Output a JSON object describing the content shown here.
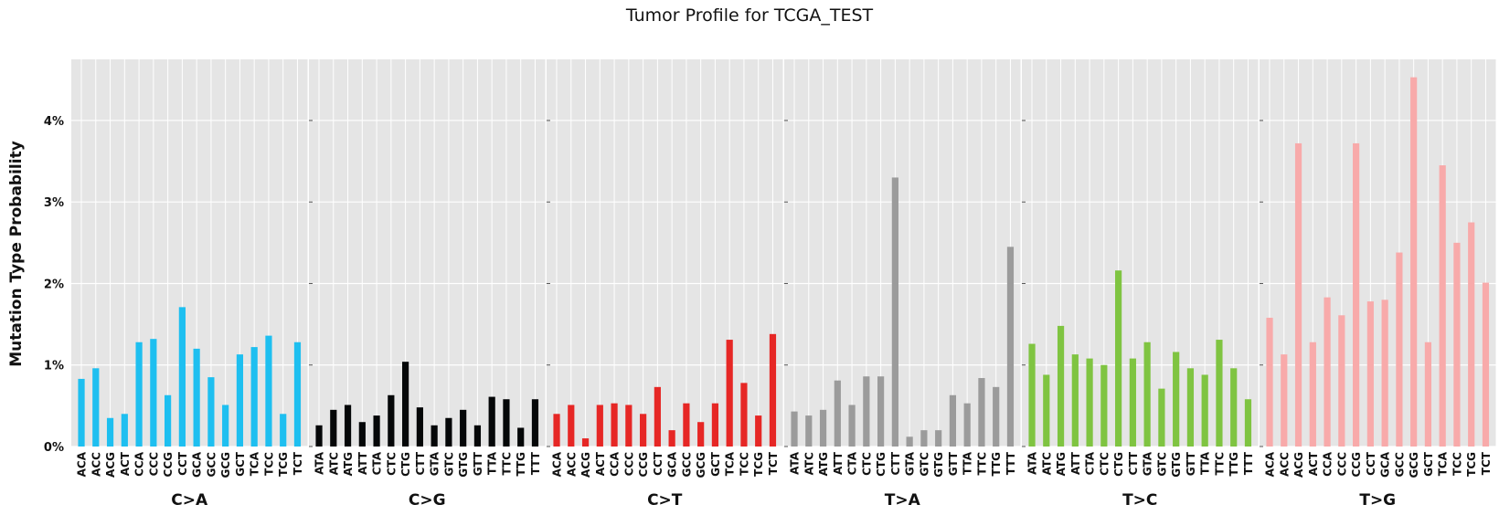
{
  "chart_data": {
    "type": "bar",
    "title": "Tumor Profile for TCGA_TEST",
    "ylabel": "Mutation Type Probability",
    "xlabel": "",
    "ylim": [
      0,
      4.75
    ],
    "yticks": [
      "0%",
      "1%",
      "2%",
      "3%",
      "4%"
    ],
    "ytick_values": [
      0,
      1,
      2,
      3,
      4
    ],
    "grid": true,
    "panels": [
      {
        "name": "C>A",
        "color": "#1ebff0",
        "categories": [
          "ACA",
          "ACC",
          "ACG",
          "ACT",
          "CCA",
          "CCC",
          "CCG",
          "CCT",
          "GCA",
          "GCC",
          "GCG",
          "GCT",
          "TCA",
          "TCC",
          "TCG",
          "TCT"
        ],
        "values": [
          0.83,
          0.96,
          0.35,
          0.4,
          1.28,
          1.32,
          0.63,
          1.71,
          1.2,
          0.85,
          0.51,
          1.13,
          1.22,
          1.36,
          0.4,
          1.28
        ]
      },
      {
        "name": "C>G",
        "color": "#050708",
        "categories": [
          "ATA",
          "ATC",
          "ATG",
          "ATT",
          "CTA",
          "CTC",
          "CTG",
          "CTT",
          "GTA",
          "GTC",
          "GTG",
          "GTT",
          "TTA",
          "TTC",
          "TTG",
          "TTT"
        ],
        "values": [
          0.26,
          0.45,
          0.51,
          0.3,
          0.38,
          0.63,
          1.04,
          0.48,
          0.26,
          0.35,
          0.45,
          0.26,
          0.61,
          0.58,
          0.23,
          0.58
        ]
      },
      {
        "name": "C>T",
        "color": "#e62725",
        "categories": [
          "ACA",
          "ACC",
          "ACG",
          "ACT",
          "CCA",
          "CCC",
          "CCG",
          "CCT",
          "GCA",
          "GCC",
          "GCG",
          "GCT",
          "TCA",
          "TCC",
          "TCG",
          "TCT"
        ],
        "values": [
          0.4,
          0.51,
          0.1,
          0.51,
          0.53,
          0.51,
          0.4,
          0.73,
          0.2,
          0.53,
          0.3,
          0.53,
          1.31,
          0.78,
          0.38,
          1.38
        ]
      },
      {
        "name": "T>A",
        "color": "#9b9b9b",
        "categories": [
          "ATA",
          "ATC",
          "ATG",
          "ATT",
          "CTA",
          "CTC",
          "CTG",
          "CTT",
          "GTA",
          "GTC",
          "GTG",
          "GTT",
          "TTA",
          "TTC",
          "TTG",
          "TTT"
        ],
        "values": [
          0.43,
          0.38,
          0.45,
          0.81,
          0.51,
          0.86,
          0.86,
          3.3,
          0.12,
          0.2,
          0.2,
          0.63,
          0.53,
          0.84,
          0.73,
          2.45
        ]
      },
      {
        "name": "T>C",
        "color": "#7fc441",
        "categories": [
          "ATA",
          "ATC",
          "ATG",
          "ATT",
          "CTA",
          "CTC",
          "CTG",
          "CTT",
          "GTA",
          "GTC",
          "GTG",
          "GTT",
          "TTA",
          "TTC",
          "TTG",
          "TTT"
        ],
        "values": [
          1.26,
          0.88,
          1.48,
          1.13,
          1.08,
          1.0,
          2.16,
          1.08,
          1.28,
          0.71,
          1.16,
          0.96,
          0.88,
          1.31,
          0.96,
          0.58
        ]
      },
      {
        "name": "T>G",
        "color": "#f8aaaa",
        "categories": [
          "ACA",
          "ACC",
          "ACG",
          "ACT",
          "CCA",
          "CCC",
          "CCG",
          "CCT",
          "GCA",
          "GCC",
          "GCG",
          "GCT",
          "TCA",
          "TCC",
          "TCG",
          "TCT"
        ],
        "values": [
          1.58,
          1.13,
          3.72,
          1.28,
          1.83,
          1.61,
          3.72,
          1.78,
          1.8,
          2.38,
          4.53,
          1.28,
          3.45,
          2.5,
          2.75,
          2.01
        ]
      }
    ]
  }
}
